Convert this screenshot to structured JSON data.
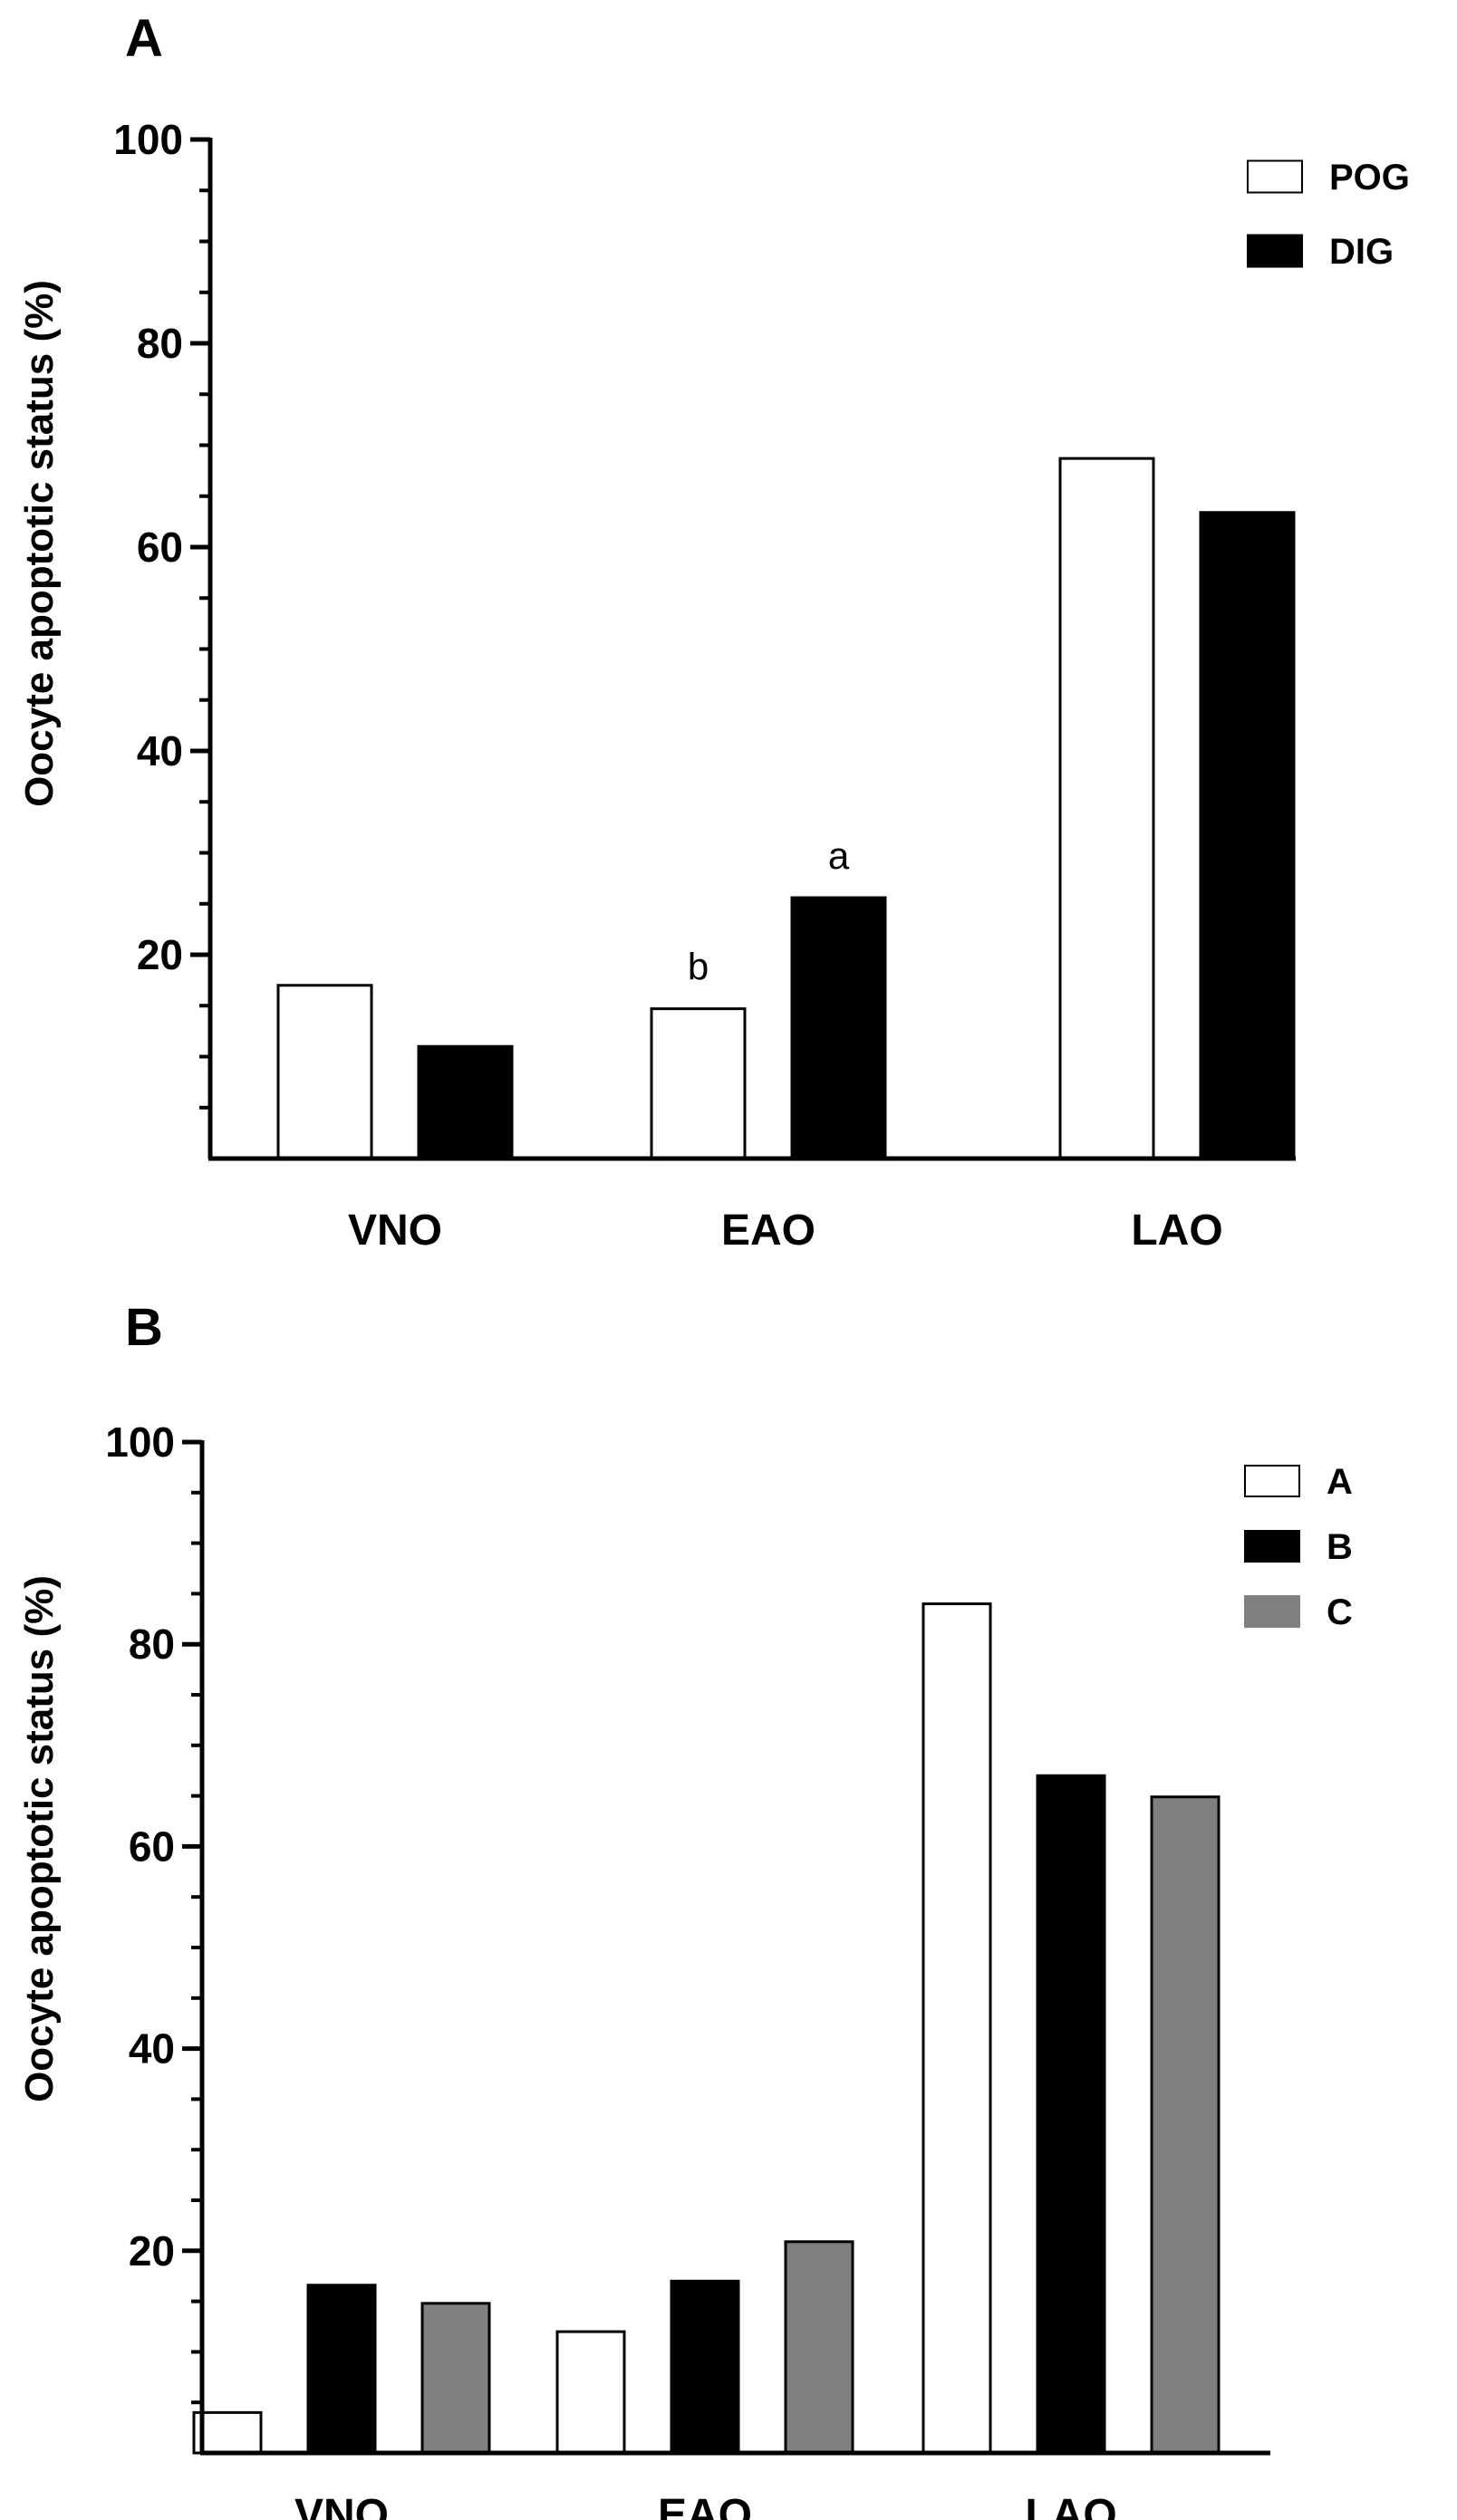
{
  "chart_data": [
    {
      "type": "bar",
      "panel_label": "A",
      "ylabel": "Oocyte apoptotic status (%)",
      "xlabel": "",
      "ylim": [
        0,
        100
      ],
      "yticks": [
        20,
        40,
        60,
        80,
        100
      ],
      "categories": [
        "VNO",
        "EAO",
        "LAO"
      ],
      "series": [
        {
          "name": "POG",
          "color": "#ffffff",
          "values": [
            17,
            14.7,
            68.7
          ]
        },
        {
          "name": "DIG",
          "color": "#000000",
          "values": [
            11,
            25.6,
            63.4
          ]
        }
      ],
      "annotations": [
        {
          "category": "EAO",
          "series": "POG",
          "text": "b"
        },
        {
          "category": "EAO",
          "series": "DIG",
          "text": "a"
        }
      ],
      "legend_position": "top-right",
      "grid": false
    },
    {
      "type": "bar",
      "panel_label": "B",
      "ylabel": "Oocyte apoptotic status (%)",
      "xlabel": "",
      "ylim": [
        0,
        100
      ],
      "yticks": [
        20,
        40,
        60,
        80,
        100
      ],
      "categories": [
        "VNO",
        "EAO",
        "LAO"
      ],
      "series": [
        {
          "name": "A",
          "color": "#ffffff",
          "values": [
            4,
            12,
            84
          ]
        },
        {
          "name": "B",
          "color": "#000000",
          "values": [
            16.6,
            17,
            67
          ]
        },
        {
          "name": "C",
          "color": "#808080",
          "values": [
            14.8,
            20.9,
            64.9
          ]
        }
      ],
      "annotations": [],
      "legend_position": "top-right",
      "grid": false
    }
  ]
}
